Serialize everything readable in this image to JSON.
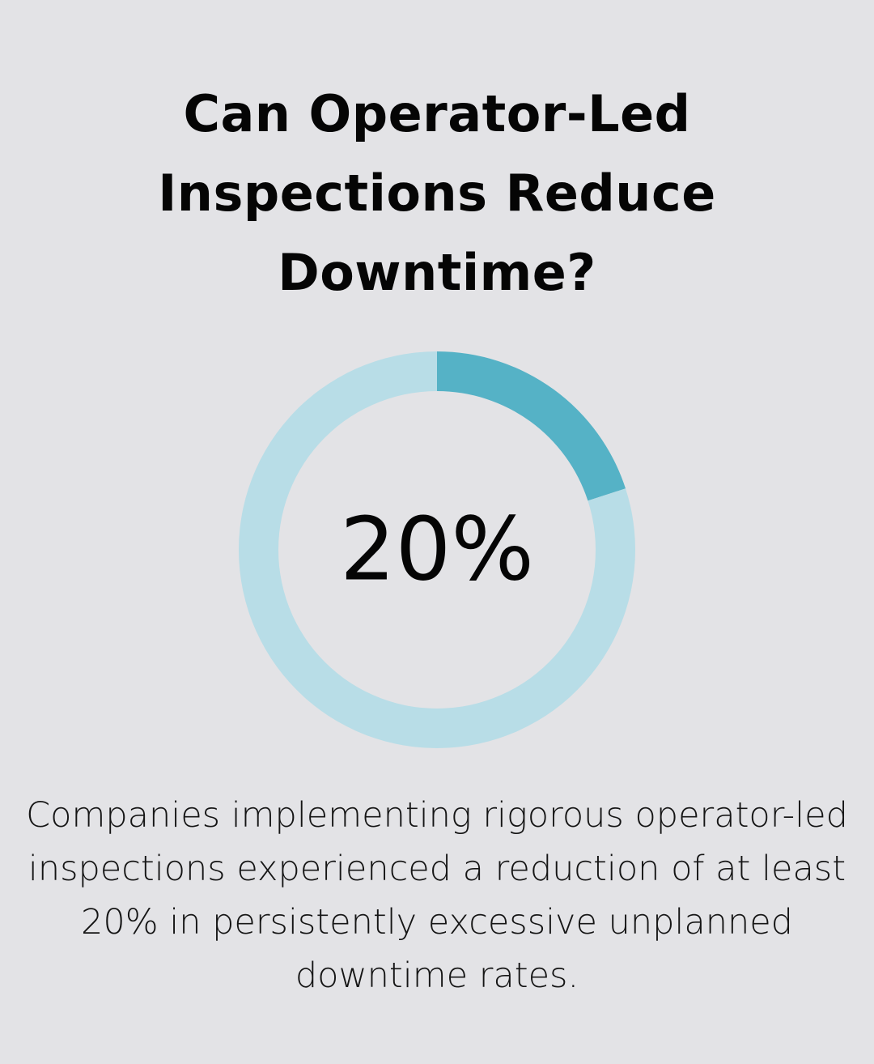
{
  "title": "Can Operator-Led Inspections Reduce Downtime?",
  "caption": "Companies implementing rigorous operator-led inspections experienced a reduction of at least 20% in persistently excessive unplanned downtime rates.",
  "colors": {
    "background": "#e3e3e6",
    "highlight": "#55b2c6",
    "track": "#b8dde7",
    "text": "#050505"
  },
  "chart_data": {
    "type": "pie",
    "variant": "donut",
    "center_label": "20%",
    "slices": [
      {
        "value": 20,
        "color": "#55b2c6"
      },
      {
        "value": 80,
        "color": "#b8dde7"
      }
    ]
  }
}
